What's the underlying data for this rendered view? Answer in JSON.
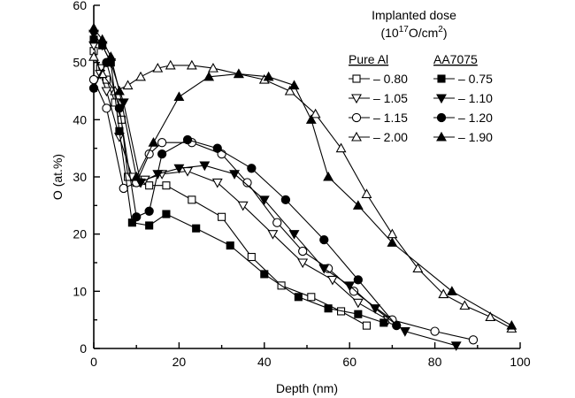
{
  "chart_data": {
    "type": "line",
    "xlabel": "Depth (nm)",
    "ylabel": "O (at.%)",
    "xlim": [
      0,
      100
    ],
    "ylim": [
      0,
      60
    ],
    "xticks": [
      0,
      20,
      40,
      60,
      80,
      100
    ],
    "yticks": [
      0,
      10,
      20,
      30,
      40,
      50,
      60
    ],
    "grid": false,
    "legend": {
      "placement": "top-right",
      "title_line1": "Implanted dose",
      "title_line2": "(10",
      "title_sup1": "17",
      "title_mid": "O/cm",
      "title_sup2": "2",
      "title_end": ")",
      "col_pure": "Pure Al",
      "col_alloy": "AA7075"
    },
    "series": [
      {
        "name": "0.80",
        "group": "Pure Al",
        "marker": "square",
        "filled": false,
        "x": [
          0,
          1.5,
          3,
          5,
          6.5,
          8,
          10,
          13,
          17,
          23,
          30,
          37,
          44,
          51,
          58,
          64
        ],
        "y": [
          52,
          49,
          47,
          43,
          40,
          30,
          29,
          28.5,
          28.5,
          26,
          23,
          16,
          11,
          9,
          6.5,
          4
        ]
      },
      {
        "name": "1.05",
        "group": "Pure Al",
        "marker": "triangle-down",
        "filled": false,
        "x": [
          0,
          1.5,
          3,
          6,
          9,
          12,
          16,
          22,
          29,
          35,
          42,
          49,
          56,
          62,
          69
        ],
        "y": [
          53,
          48,
          45,
          37,
          30,
          29.5,
          30.5,
          31,
          29,
          25,
          20,
          15,
          12,
          8,
          5
        ]
      },
      {
        "name": "1.15",
        "group": "Pure Al",
        "marker": "circle",
        "filled": false,
        "x": [
          0,
          3,
          7,
          10,
          13,
          16,
          23,
          30,
          36,
          43,
          49,
          55,
          61,
          70,
          80,
          89
        ],
        "y": [
          47,
          42,
          28,
          29,
          34,
          36,
          36,
          34,
          29,
          22,
          17,
          14,
          10,
          5,
          3,
          1.5
        ]
      },
      {
        "name": "2.00",
        "group": "Pure Al",
        "marker": "triangle-up",
        "filled": false,
        "x": [
          0,
          2,
          5,
          8,
          11,
          15,
          18,
          23,
          28,
          34,
          40,
          46,
          52,
          58,
          64,
          70,
          76,
          82,
          87,
          93,
          98
        ],
        "y": [
          51,
          48,
          45,
          46,
          47.5,
          49,
          49.5,
          49.5,
          49,
          48,
          47,
          45,
          41,
          35,
          27,
          20,
          14,
          9.5,
          7.5,
          5.5,
          3.5
        ]
      },
      {
        "name": "0.75",
        "group": "AA7075",
        "marker": "square",
        "filled": true,
        "x": [
          0,
          2,
          4,
          6,
          9,
          13,
          17,
          24,
          32,
          40,
          48,
          55,
          62,
          68
        ],
        "y": [
          54,
          53,
          50,
          38,
          22,
          21.5,
          23.5,
          21,
          18,
          13,
          9,
          7,
          6,
          4.5
        ]
      },
      {
        "name": "1.10",
        "group": "AA7075",
        "marker": "triangle-down",
        "filled": true,
        "x": [
          0,
          2,
          4,
          7,
          11,
          15,
          20,
          26,
          33,
          40,
          47,
          54,
          60,
          66,
          73,
          85
        ],
        "y": [
          55,
          53,
          50,
          43,
          29,
          30.5,
          31.5,
          32,
          30.5,
          26,
          20,
          14,
          11,
          7,
          3,
          0.5
        ]
      },
      {
        "name": "1.20",
        "group": "AA7075",
        "marker": "circle",
        "filled": true,
        "x": [
          0,
          3,
          6,
          10,
          13,
          16,
          22,
          29,
          37,
          45,
          54,
          62,
          71
        ],
        "y": [
          45.5,
          50,
          42,
          23,
          24,
          34,
          36.5,
          35,
          31.5,
          26,
          19,
          12,
          4
        ]
      },
      {
        "name": "1.90",
        "group": "AA7075",
        "marker": "triangle-up",
        "filled": true,
        "x": [
          0,
          2,
          4,
          6,
          10,
          14,
          20,
          27,
          34,
          41,
          47,
          51,
          55,
          62,
          70,
          84,
          98
        ],
        "y": [
          56,
          54,
          51,
          45,
          30,
          36,
          44,
          47.5,
          48,
          47.5,
          46,
          40,
          30,
          25,
          18.5,
          10,
          4
        ]
      }
    ]
  }
}
